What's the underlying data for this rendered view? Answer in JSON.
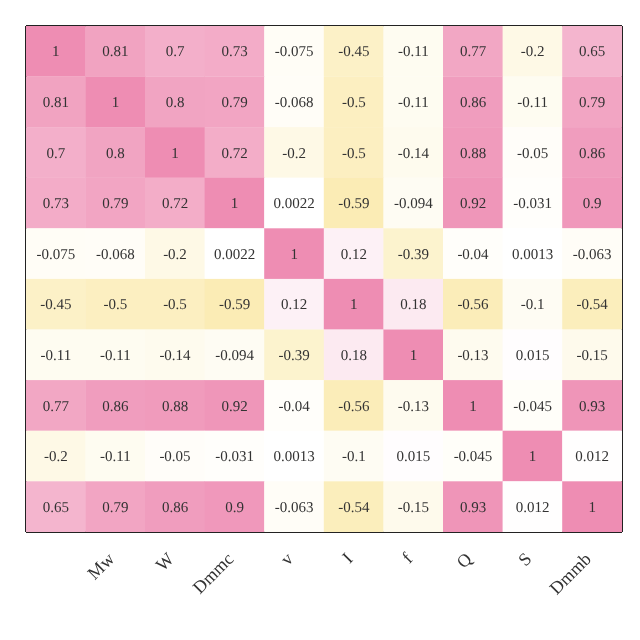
{
  "chart_data": {
    "type": "heatmap",
    "categories": [
      null,
      "Mw",
      "W",
      "Dmmc",
      "v",
      "I",
      "f",
      "Q",
      "S",
      "Dmmb"
    ],
    "y_categories": [
      null,
      null,
      null,
      null,
      null,
      null,
      null,
      null,
      null,
      null
    ],
    "cells": [
      [
        1,
        0.81,
        0.7,
        0.73,
        -0.075,
        -0.45,
        -0.11,
        0.77,
        -0.2,
        0.65
      ],
      [
        0.81,
        1,
        0.8,
        0.79,
        -0.068,
        -0.5,
        -0.11,
        0.86,
        -0.11,
        0.79
      ],
      [
        0.7,
        0.8,
        1,
        0.72,
        -0.2,
        -0.5,
        -0.14,
        0.88,
        -0.05,
        0.86
      ],
      [
        0.73,
        0.79,
        0.72,
        1,
        0.0022,
        -0.59,
        -0.094,
        0.92,
        -0.031,
        0.9
      ],
      [
        -0.075,
        -0.068,
        -0.2,
        0.0022,
        1,
        0.12,
        -0.39,
        -0.04,
        0.0013,
        -0.063
      ],
      [
        -0.45,
        -0.5,
        -0.5,
        -0.59,
        0.12,
        1,
        0.18,
        -0.56,
        -0.1,
        -0.54
      ],
      [
        -0.11,
        -0.11,
        -0.14,
        -0.094,
        -0.39,
        0.18,
        1,
        -0.13,
        0.015,
        -0.15
      ],
      [
        0.77,
        0.86,
        0.88,
        0.92,
        -0.04,
        -0.56,
        -0.13,
        1,
        -0.045,
        0.93
      ],
      [
        -0.2,
        -0.11,
        -0.05,
        -0.031,
        0.0013,
        -0.1,
        0.015,
        -0.045,
        1,
        0.012
      ],
      [
        0.65,
        0.79,
        0.86,
        0.9,
        -0.063,
        -0.54,
        -0.15,
        0.93,
        0.012,
        1
      ]
    ],
    "data_labels": true,
    "tick_labels": "x"
  }
}
